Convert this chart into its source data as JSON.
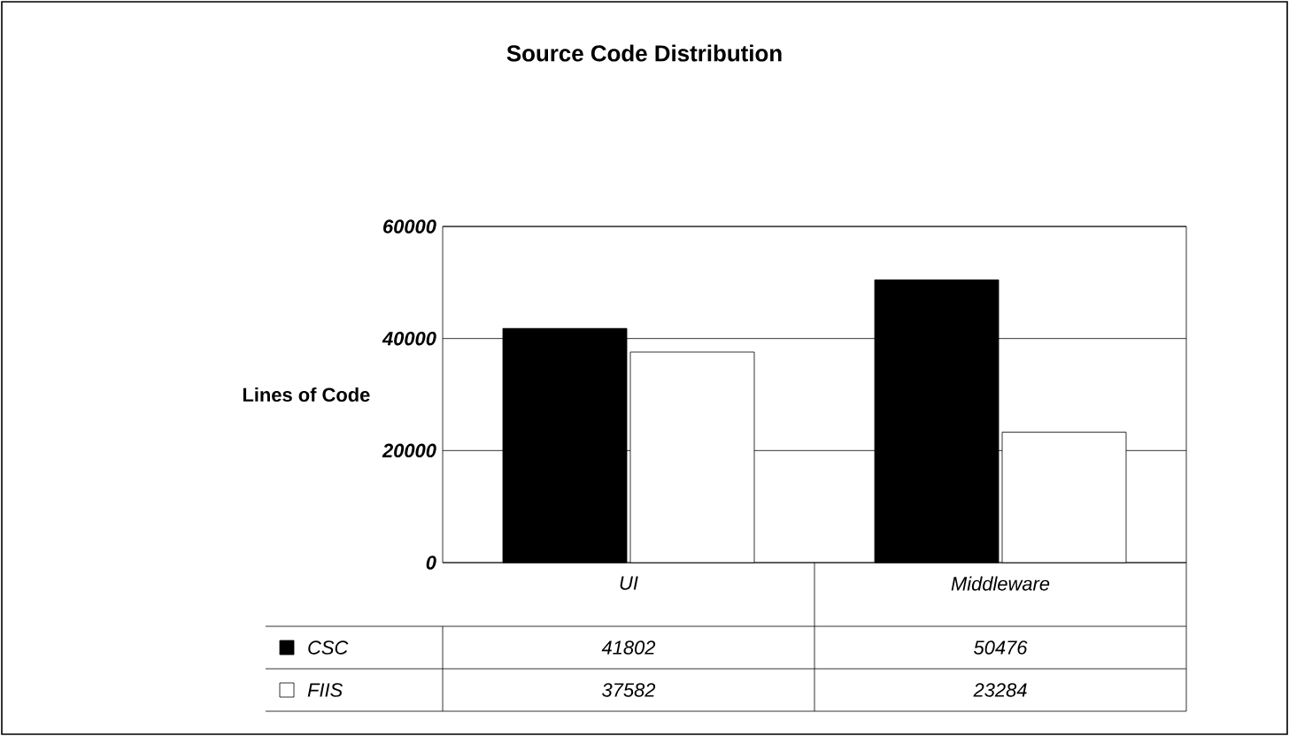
{
  "chart_data": {
    "type": "bar",
    "title": "Source Code Distribution",
    "ylabel": "Lines of Code",
    "categories": [
      "UI",
      "Middleware"
    ],
    "series": [
      {
        "name": "CSC",
        "color": "#000000",
        "values": [
          41802,
          50476
        ]
      },
      {
        "name": "FIIS",
        "color": "#ffffff",
        "values": [
          37582,
          23284
        ]
      }
    ],
    "ylim": [
      0,
      60000
    ],
    "yticks": [
      0,
      20000,
      40000,
      60000
    ],
    "grid": "y",
    "legend": "bottom",
    "data_labels": true
  }
}
